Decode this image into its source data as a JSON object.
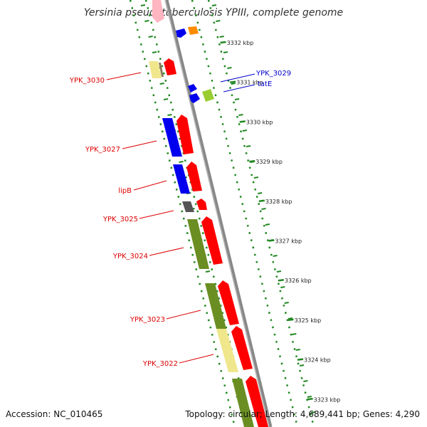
{
  "title": "Yersinia pseudotuberculosis YPIII, complete genome",
  "footer": {
    "accession": "Accession: NC_010465",
    "summary": "Topology: circular; Length: 4,689,441 bp; Genes: 4,290"
  },
  "ticks": [
    {
      "kbp": 3332,
      "label": "3332 kbp"
    },
    {
      "kbp": 3331,
      "label": "3331 kbp"
    },
    {
      "kbp": 3330,
      "label": "3330 kbp"
    },
    {
      "kbp": 3329,
      "label": "3329 kbp"
    },
    {
      "kbp": 3328,
      "label": "3328 kbp"
    },
    {
      "kbp": 3327,
      "label": "3327 kbp"
    },
    {
      "kbp": 3326,
      "label": "3326 kbp"
    },
    {
      "kbp": 3325,
      "label": "3325 kbp"
    },
    {
      "kbp": 3324,
      "label": "3324 kbp"
    },
    {
      "kbp": 3323,
      "label": "3323 kbp"
    }
  ],
  "gene_labels": [
    {
      "label": "YPK_3030",
      "color": "#dd0000"
    },
    {
      "label": "YPK_3029",
      "color": "#0000cc"
    },
    {
      "label": "tatE",
      "color": "#0000cc"
    },
    {
      "label": "YPK_3027",
      "color": "#dd0000"
    },
    {
      "label": "lipB",
      "color": "#dd0000"
    },
    {
      "label": "YPK_3025",
      "color": "#dd0000"
    },
    {
      "label": "YPK_3024",
      "color": "#dd0000"
    },
    {
      "label": "YPK_3023",
      "color": "#dd0000"
    },
    {
      "label": "YPK_3022",
      "color": "#dd0000"
    }
  ],
  "colors": {
    "axis": "#888888",
    "tick": "#228822",
    "forward_cds": "#ff0000",
    "cog_blue": "#0000ee",
    "cog_olive": "#6b8e23",
    "cog_khaki": "#f0e68c",
    "cog_grey": "#555555",
    "cog_orange": "#ff8c00",
    "cog_lime": "#9acd32",
    "cog_pink": "#ffb6c1"
  }
}
